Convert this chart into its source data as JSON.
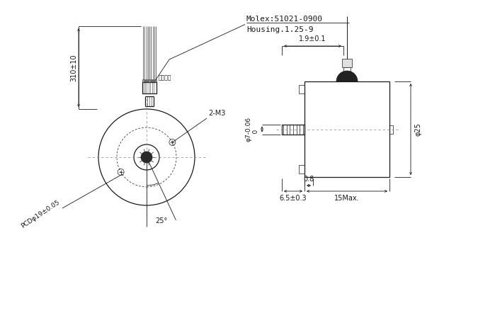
{
  "bg_color": "#ffffff",
  "line_color": "#1a1a1a",
  "title_molex": "Molex:51021-0900",
  "title_housing": "Housing.1.25-9",
  "label_pcd": "PCDφ19±0.05",
  "label_2m3": "2-M3",
  "label_310": "310±10",
  "label_19": "1.9±0.1",
  "label_phi25": "φ25",
  "label_phi7": "φ7-0.06\n    0",
  "label_065": "6.5±0.3",
  "label_15max": "15Max.",
  "label_08": "0.8",
  "label_25deg": "25°",
  "label_wires": "蓝白黄红"
}
